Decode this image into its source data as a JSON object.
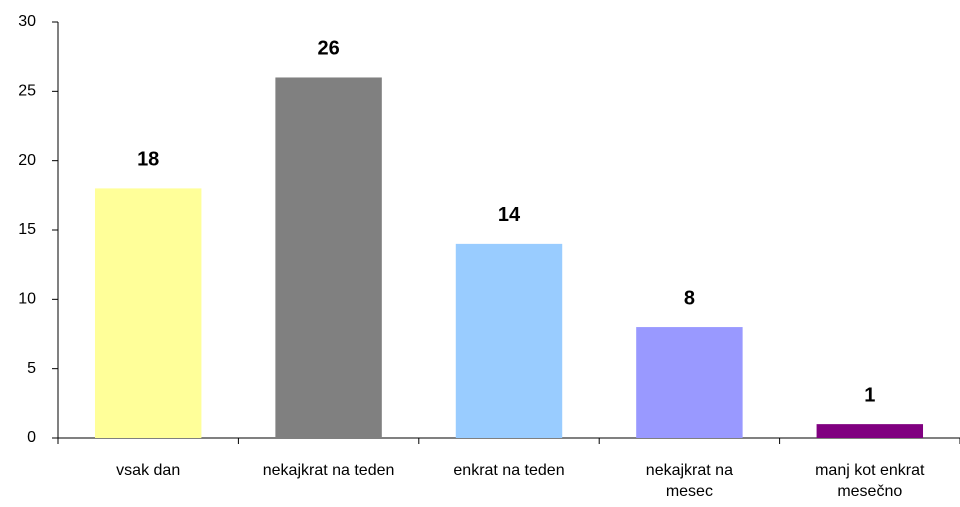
{
  "chart_data": {
    "type": "bar",
    "categories": [
      "vsak dan",
      "nekajkrat na teden",
      "enkrat na teden",
      "nekajkrat na\nmesec",
      "manj kot enkrat\nmesečno"
    ],
    "values": [
      18,
      26,
      14,
      8,
      1
    ],
    "colors": [
      "#ffff99",
      "#808080",
      "#99ccff",
      "#9999ff",
      "#800080"
    ],
    "ylim": [
      0,
      30
    ],
    "yticks": [
      0,
      5,
      10,
      15,
      20,
      25,
      30
    ],
    "grid": false
  }
}
